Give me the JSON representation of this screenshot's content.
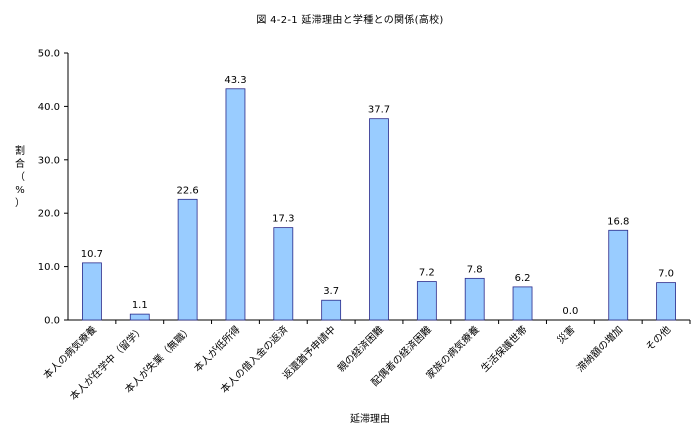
{
  "chart_data": {
    "type": "bar",
    "title": "図 4-2-1 延滞理由と学種との関係(高校)",
    "xlabel": "延滞理由",
    "ylabel": "割合（%）",
    "ylim": [
      0,
      50
    ],
    "yticks": [
      "0.0",
      "10.0",
      "20.0",
      "30.0",
      "40.0",
      "50.0"
    ],
    "grid": false,
    "legend": "none",
    "bar_color": "#99ccff",
    "bar_stroke": "#2a2a8a",
    "categories": [
      "本人の病気療養",
      "本人が在学中（留学）",
      "本人が失業（無職）",
      "本人が低所得",
      "本人の借入金の返済",
      "返還猶予申請中",
      "親の経済困難",
      "配偶者の経済困難",
      "家族の病気療養",
      "生活保護世帯",
      "災害",
      "滞納額の増加",
      "その他"
    ],
    "values": [
      10.7,
      1.1,
      22.6,
      43.3,
      17.3,
      3.7,
      37.7,
      7.2,
      7.8,
      6.2,
      0.0,
      16.8,
      7.0
    ],
    "value_labels": [
      "10.7",
      "1.1",
      "22.6",
      "43.3",
      "17.3",
      "3.7",
      "37.7",
      "7.2",
      "7.8",
      "6.2",
      "0.0",
      "16.8",
      "7.0"
    ]
  }
}
